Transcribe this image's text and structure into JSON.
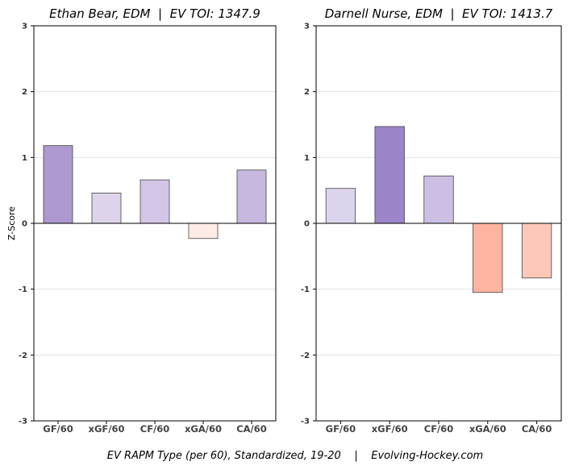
{
  "chart_data": [
    {
      "type": "bar",
      "title": "Ethan Bear, EDM  |  EV TOI: 1347.9",
      "ylabel": "Z-Score",
      "ylim": [
        -3,
        3
      ],
      "yticks": [
        -3,
        -2,
        -1,
        0,
        1,
        2,
        3
      ],
      "categories": [
        "GF/60",
        "xGF/60",
        "CF/60",
        "xGA/60",
        "CA/60"
      ],
      "values": [
        1.18,
        0.46,
        0.66,
        -0.23,
        0.81
      ],
      "colors": [
        "#ad98cf",
        "#ddd4ec",
        "#d3c5e7",
        "#fdece6",
        "#c7b8e0"
      ],
      "grid": "horizontal"
    },
    {
      "type": "bar",
      "title": "Darnell Nurse, EDM  |  EV TOI: 1413.7",
      "ylabel": "",
      "ylim": [
        -3,
        3
      ],
      "yticks": [
        -3,
        -2,
        -1,
        0,
        1,
        2,
        3
      ],
      "categories": [
        "GF/60",
        "xGF/60",
        "CF/60",
        "xGA/60",
        "CA/60"
      ],
      "values": [
        0.53,
        1.47,
        0.72,
        -1.05,
        -0.83
      ],
      "colors": [
        "#dcd3ec",
        "#9c84c9",
        "#ccbfe3",
        "#fdb4a0",
        "#fec8b8"
      ],
      "grid": "horizontal"
    }
  ],
  "caption": "EV RAPM Type (per 60), Standardized, 19-20    |    Evolving-Hockey.com",
  "colors": {
    "grid": "#e3e3e3",
    "axis": "#000000",
    "bar_edge": "#444444"
  }
}
